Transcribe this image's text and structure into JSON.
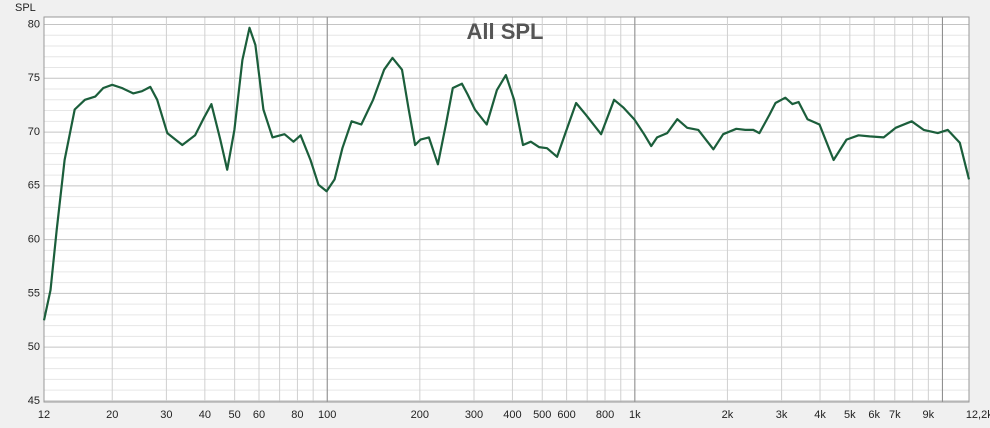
{
  "chart_data": {
    "type": "line",
    "title": "All SPL",
    "y_label": "SPL",
    "x_log": true,
    "xlim": [
      12,
      12200
    ],
    "ylim": [
      44.9,
      80.7
    ],
    "xticks": [
      12,
      20,
      30,
      40,
      50,
      60,
      80,
      100,
      200,
      300,
      400,
      500,
      600,
      800,
      {
        "value": 1000,
        "label": "1k"
      },
      {
        "value": 2000,
        "label": "2k"
      },
      {
        "value": 3000,
        "label": "3k"
      },
      {
        "value": 4000,
        "label": "4k"
      },
      {
        "value": 5000,
        "label": "5k"
      },
      {
        "value": 6000,
        "label": "6k"
      },
      {
        "value": 7000,
        "label": "7k"
      },
      {
        "value": 9000,
        "label": "9k"
      },
      {
        "value": 12200,
        "label": "12,2kHz"
      }
    ],
    "xminorticks": [
      70,
      90,
      700,
      900,
      8000,
      10000
    ],
    "xmajorgrid": [
      100,
      1000,
      10000
    ],
    "yticks": [
      45,
      50,
      55,
      60,
      65,
      70,
      75,
      80
    ],
    "yminorticks": [
      46,
      47,
      48,
      49,
      51,
      52,
      53,
      54,
      56,
      57,
      58,
      59,
      61,
      62,
      63,
      64,
      66,
      67,
      68,
      69,
      71,
      72,
      73,
      74,
      76,
      77,
      78,
      79
    ],
    "grid": true,
    "series": [
      {
        "name": "All SPL",
        "color": "#1b5e3b",
        "x": [
          12,
          12.6,
          13.2,
          14.0,
          15.1,
          16.3,
          17.6,
          18.7,
          20.0,
          21.5,
          23.4,
          25.0,
          26.6,
          28.0,
          30.2,
          33.8,
          37.2,
          39.5,
          42.0,
          44.9,
          47.3,
          49.9,
          53.0,
          55.9,
          58.4,
          62.0,
          66.4,
          72.6,
          77.7,
          81.9,
          88.2,
          93.7,
          99.5,
          105.7,
          112,
          120,
          129,
          141,
          153,
          163,
          175,
          184,
          193,
          201,
          214,
          229,
          243,
          256,
          274,
          286,
          302,
          330,
          356,
          381,
          405,
          433,
          459,
          488,
          518,
          559,
          593,
          644,
          694,
          777,
          856,
          916,
          995,
          1072,
          1130,
          1181,
          1274,
          1374,
          1480,
          1608,
          1800,
          1938,
          2137,
          2287,
          2428,
          2540,
          2738,
          2866,
          3084,
          3252,
          3408,
          3643,
          3983,
          4426,
          4877,
          5335,
          5796,
          6444,
          7050,
          7944,
          8689,
          9660,
          10404,
          11388,
          12200
        ],
        "values": [
          52.5,
          55.3,
          60.9,
          67.4,
          72.1,
          73.0,
          73.3,
          74.1,
          74.4,
          74.1,
          73.6,
          73.8,
          74.2,
          73.0,
          69.9,
          68.8,
          69.7,
          71.2,
          72.6,
          69.3,
          66.5,
          70.2,
          76.7,
          79.7,
          78.1,
          72.1,
          69.5,
          69.8,
          69.1,
          69.7,
          67.4,
          65.1,
          64.5,
          65.6,
          68.5,
          71.0,
          70.7,
          73.0,
          75.8,
          76.9,
          75.8,
          72.1,
          68.8,
          69.3,
          69.5,
          67.0,
          70.7,
          74.1,
          74.5,
          73.5,
          72.1,
          70.7,
          73.9,
          75.3,
          73.0,
          68.8,
          69.1,
          68.6,
          68.5,
          67.7,
          69.8,
          72.7,
          71.6,
          69.8,
          73.0,
          72.3,
          71.2,
          69.8,
          68.7,
          69.5,
          69.9,
          71.2,
          70.4,
          70.2,
          68.4,
          69.8,
          70.3,
          70.2,
          70.2,
          69.9,
          71.6,
          72.7,
          73.2,
          72.6,
          72.8,
          71.2,
          70.7,
          67.4,
          69.3,
          69.7,
          69.6,
          69.5,
          70.4,
          71.0,
          70.2,
          69.9,
          70.2,
          69.0,
          65.6
        ]
      }
    ]
  }
}
